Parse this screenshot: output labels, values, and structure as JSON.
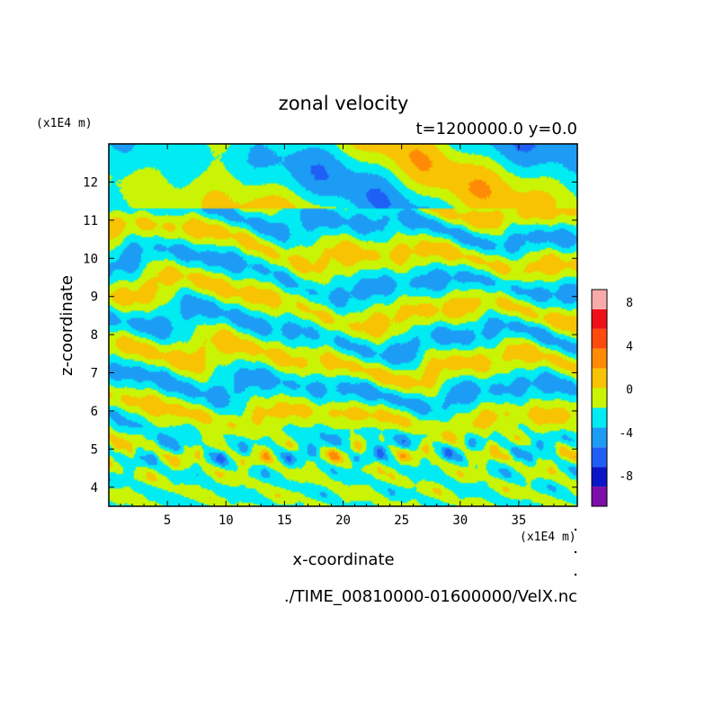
{
  "chart_data": {
    "type": "heatmap",
    "title": "zonal velocity",
    "subtitle": "t=1200000.0 y=0.0",
    "xlabel": "x-coordinate",
    "ylabel": "z-coordinate",
    "x_units": "(x1E4 m)",
    "y_units": "(x1E4 m)",
    "xlim": [
      0,
      40
    ],
    "ylim": [
      3.5,
      13
    ],
    "xticks": [
      5,
      10,
      15,
      20,
      25,
      30,
      35
    ],
    "yticks": [
      4,
      5,
      6,
      7,
      8,
      9,
      10,
      11,
      12
    ],
    "xtick_labels": [
      "5",
      "10",
      "15",
      "20",
      "25",
      "30",
      "35"
    ],
    "ytick_labels": [
      "4",
      "5",
      "6",
      "7",
      "8",
      "9",
      "10",
      "11",
      "12"
    ],
    "source_label": "./TIME_00810000-01600000/VelX.nc",
    "colorbar": {
      "levels": [
        -10,
        -8,
        -6,
        -4,
        -2,
        0,
        2,
        4,
        6,
        8,
        10
      ],
      "colors": [
        "#7b0fa8",
        "#0a16c8",
        "#1f5ff5",
        "#1d9cf5",
        "#00ecf2",
        "#c9f505",
        "#f7c302",
        "#ff8a05",
        "#ff4a0d",
        "#f0101a",
        "#f8aaaa"
      ],
      "tick_values": [
        -8,
        -4,
        0,
        4,
        8
      ],
      "tick_labels": [
        "-8",
        "-4",
        "0",
        "4",
        "8"
      ]
    },
    "field_description_ranges": {
      "dominant_values": [
        -2,
        2
      ],
      "wave_layer_z": [
        3.5,
        6
      ],
      "wave_layer_extremes": [
        -6,
        6
      ]
    }
  }
}
